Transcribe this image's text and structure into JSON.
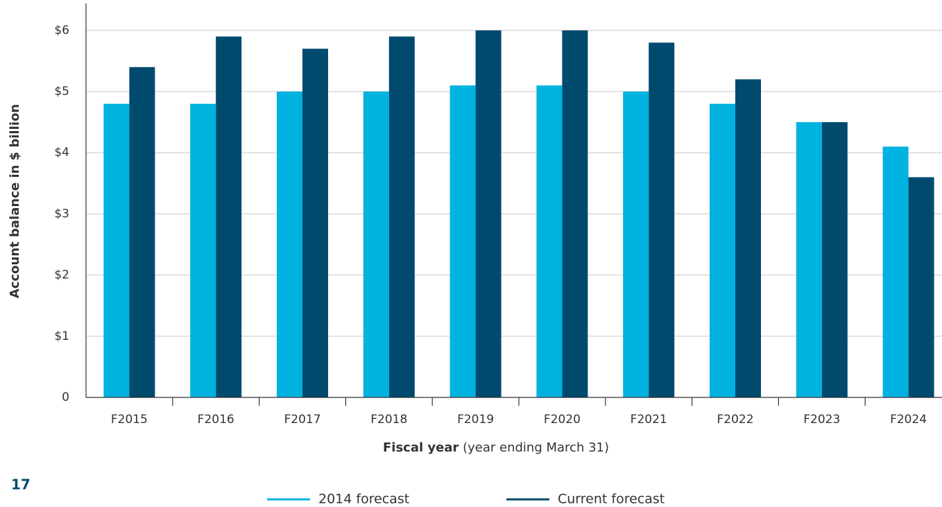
{
  "chart_data": {
    "type": "bar",
    "y_label": "Account balance in $ billion",
    "x_label": "Fiscal year",
    "x_label_note": "(year ending March 31)",
    "page_number": "17",
    "categories": [
      "F2015",
      "F2016",
      "F2017",
      "F2018",
      "F2019",
      "F2020",
      "F2021",
      "F2022",
      "F2023",
      "F2024"
    ],
    "series": [
      {
        "name": "2014 forecast",
        "color": "#00b2e0",
        "values": [
          4.8,
          4.8,
          5.0,
          5.0,
          5.1,
          5.1,
          5.0,
          4.8,
          4.5,
          4.1
        ]
      },
      {
        "name": "Current forecast",
        "color": "#004a6e",
        "values": [
          5.4,
          5.9,
          5.7,
          5.9,
          6.0,
          6.0,
          5.8,
          5.2,
          4.5,
          3.6
        ]
      }
    ],
    "ylim": [
      0,
      6.44
    ],
    "yticks": [
      0,
      {
        "value": 1,
        "label": "$1"
      },
      {
        "value": 2,
        "label": "$2"
      },
      {
        "value": 3,
        "label": "$3"
      },
      {
        "value": 4,
        "label": "$4"
      },
      {
        "value": 5,
        "label": "$5"
      },
      {
        "value": 6,
        "label": "$6"
      }
    ],
    "grid": true,
    "legend": "bottom"
  }
}
